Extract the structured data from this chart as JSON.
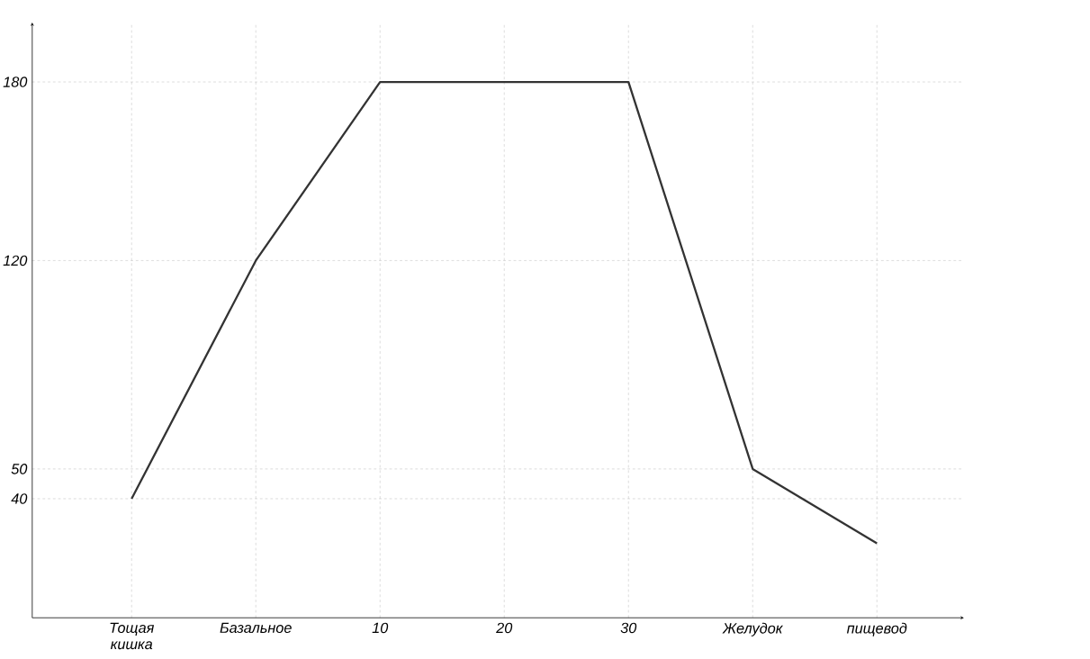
{
  "chart_data": {
    "type": "line",
    "categories": [
      "Тощая кишка",
      "Базальное",
      "10",
      "20",
      "30",
      "Желудок",
      "пищевод"
    ],
    "values": [
      40,
      120,
      180,
      180,
      180,
      50,
      25
    ],
    "color": "#333333",
    "ylim": [
      0,
      200
    ],
    "yticks": [
      40,
      50,
      120,
      180
    ],
    "grid": true,
    "marker": "none",
    "line_style": "solid"
  }
}
